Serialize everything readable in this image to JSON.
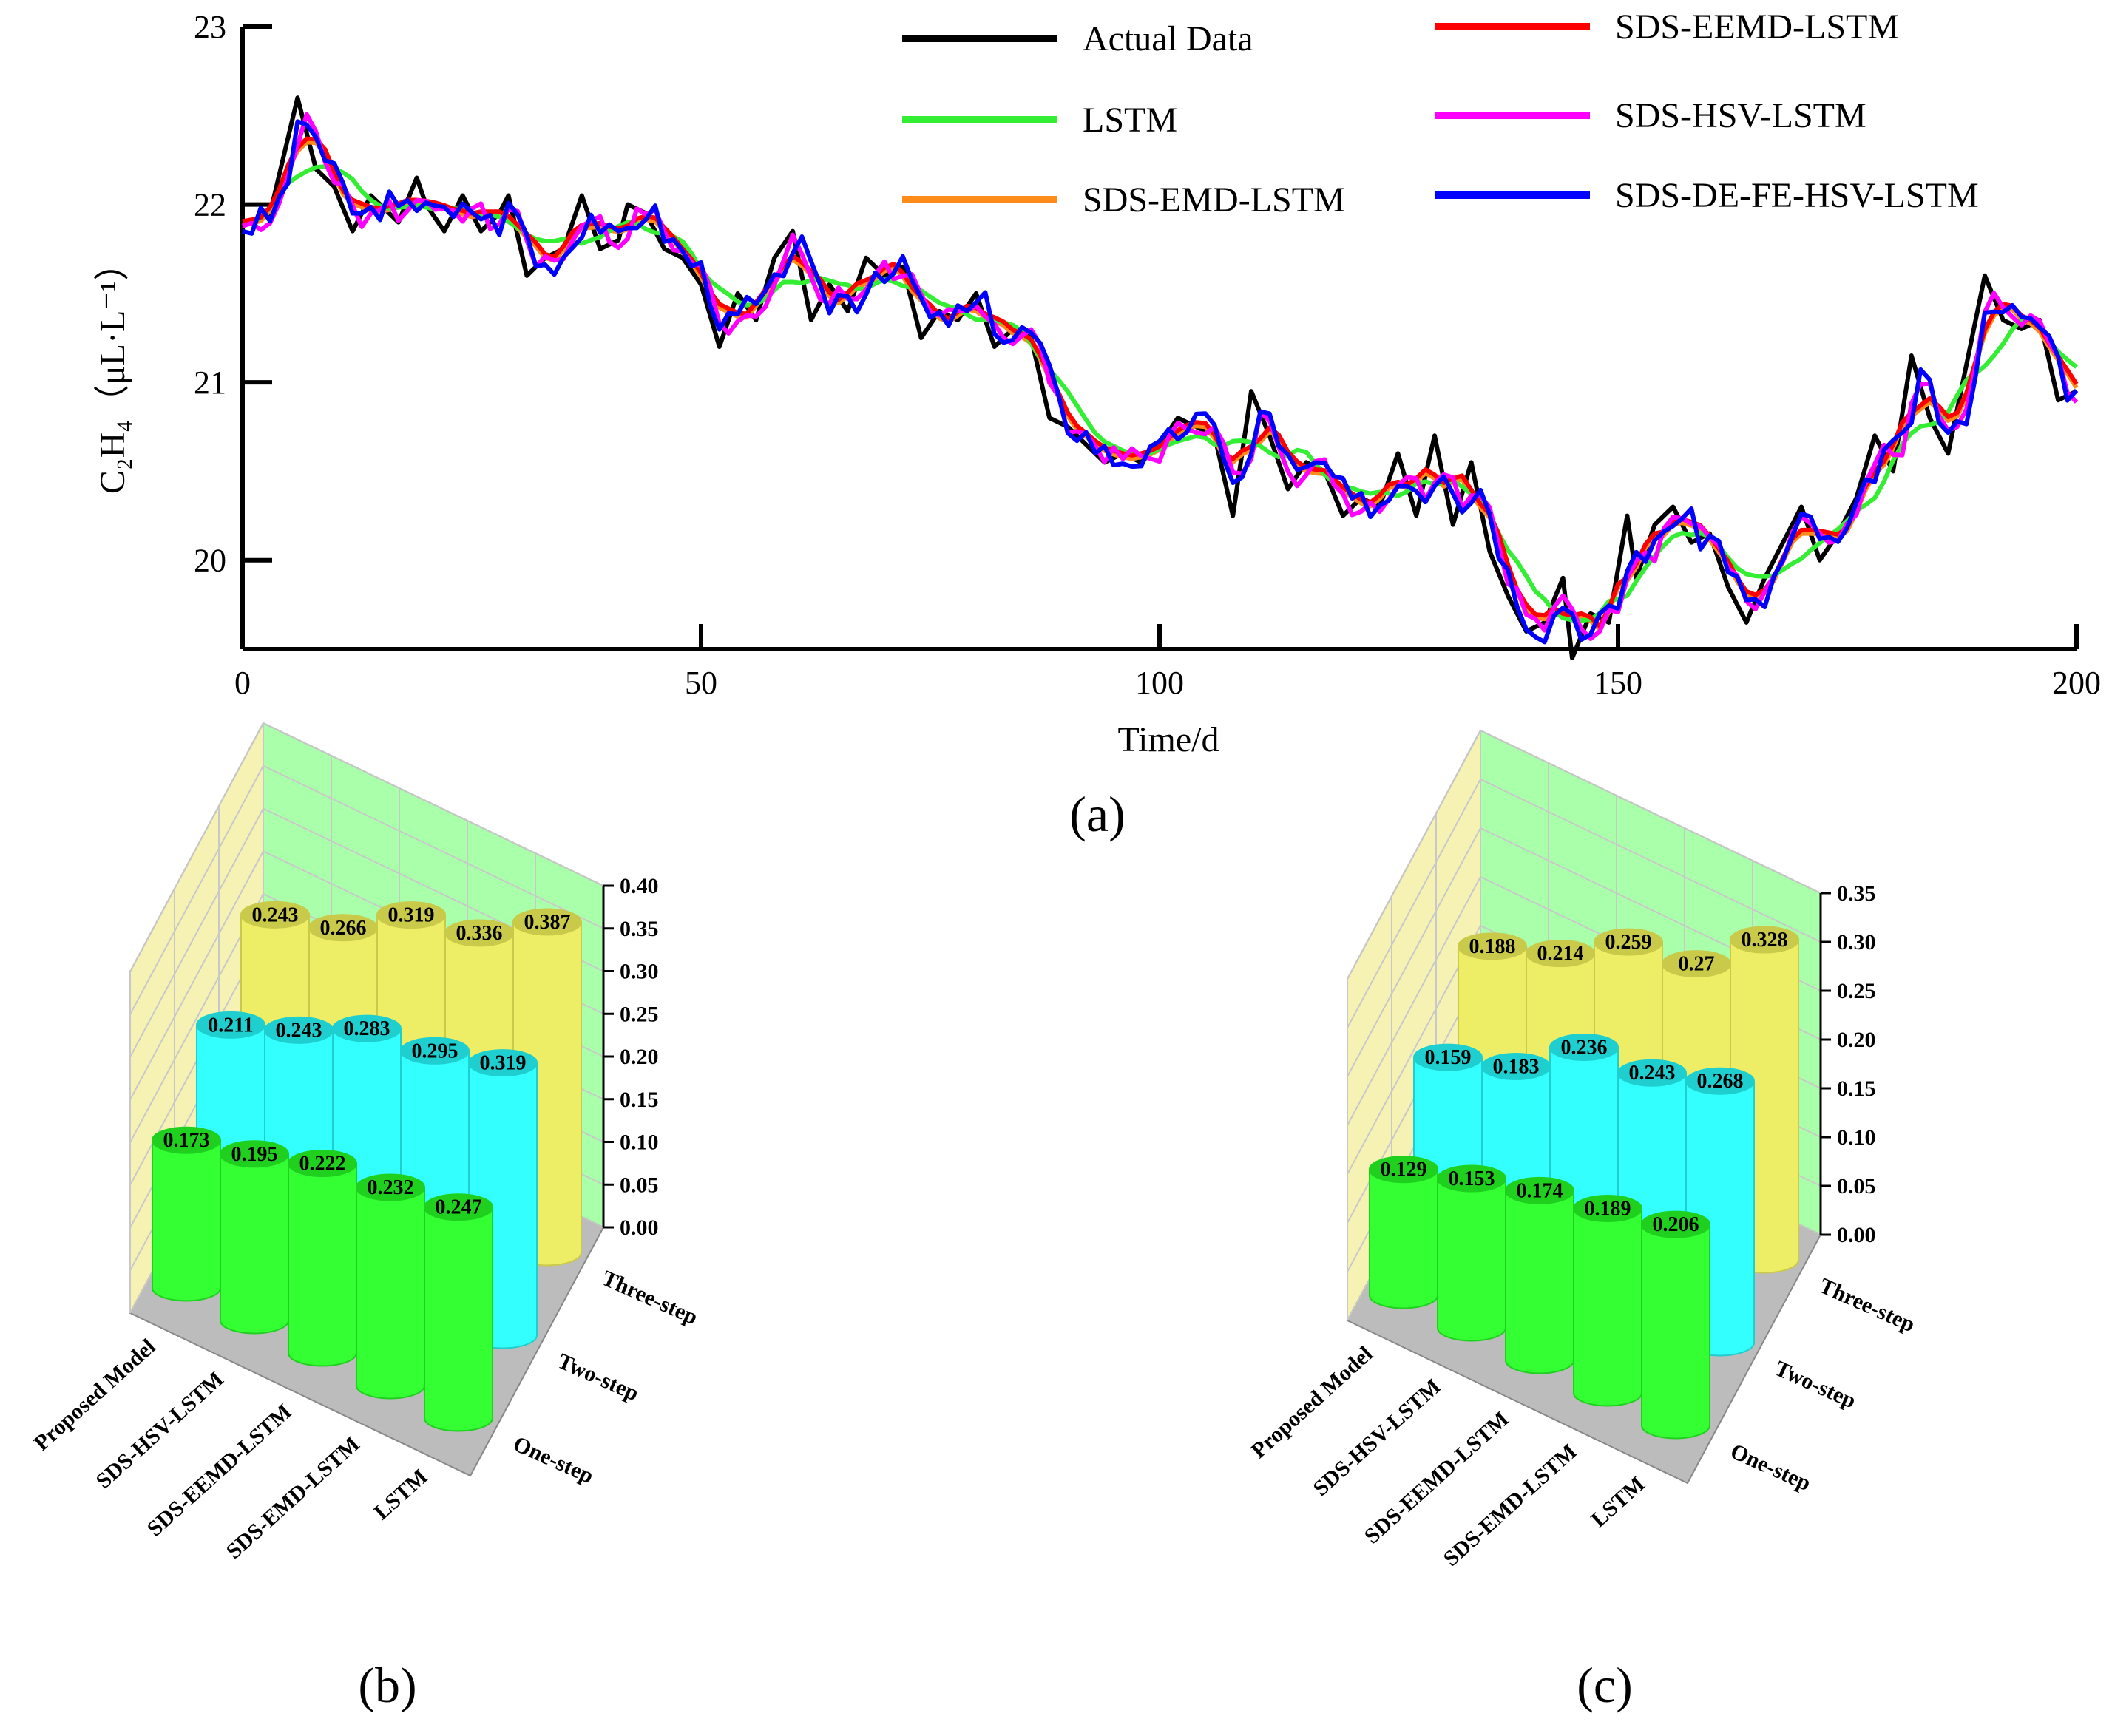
{
  "chart_data": [
    {
      "panel": "(a)",
      "type": "line",
      "xlabel": "Time/d",
      "ylabel": "C₂H₄（μL·L⁻¹）",
      "xlim": [
        0,
        200
      ],
      "ylim": [
        19.5,
        23
      ],
      "xticks": [
        "0",
        "50",
        "100",
        "150",
        "200"
      ],
      "yticks": [
        "20",
        "21",
        "22",
        "23"
      ],
      "legend": [
        "Actual Data",
        "LSTM",
        "SDS-EMD-LSTM",
        "SDS-EEMD-LSTM",
        "SDS-HSV-LSTM",
        "SDS-DE-FE-HSV-LSTM"
      ],
      "colors": [
        "#000000",
        "#33ee33",
        "#ff8c1a",
        "#ff0000",
        "#ff00ff",
        "#0000ff"
      ],
      "actual_keypoints": [
        [
          0,
          21.88
        ],
        [
          3,
          21.95
        ],
        [
          6,
          22.6
        ],
        [
          8,
          22.2
        ],
        [
          10,
          22.1
        ],
        [
          12,
          21.85
        ],
        [
          14,
          22.05
        ],
        [
          17,
          21.9
        ],
        [
          19,
          22.15
        ],
        [
          20,
          22.0
        ],
        [
          22,
          21.85
        ],
        [
          24,
          22.05
        ],
        [
          26,
          21.85
        ],
        [
          28,
          21.95
        ],
        [
          29,
          22.05
        ],
        [
          31,
          21.6
        ],
        [
          33,
          21.7
        ],
        [
          35,
          21.75
        ],
        [
          37,
          22.05
        ],
        [
          39,
          21.75
        ],
        [
          41,
          21.8
        ],
        [
          42,
          22.0
        ],
        [
          44,
          21.95
        ],
        [
          46,
          21.75
        ],
        [
          48,
          21.7
        ],
        [
          50,
          21.55
        ],
        [
          52,
          21.2
        ],
        [
          54,
          21.5
        ],
        [
          56,
          21.35
        ],
        [
          58,
          21.7
        ],
        [
          60,
          21.85
        ],
        [
          62,
          21.35
        ],
        [
          64,
          21.55
        ],
        [
          66,
          21.4
        ],
        [
          68,
          21.7
        ],
        [
          70,
          21.6
        ],
        [
          72,
          21.65
        ],
        [
          74,
          21.25
        ],
        [
          76,
          21.4
        ],
        [
          78,
          21.35
        ],
        [
          80,
          21.5
        ],
        [
          82,
          21.2
        ],
        [
          84,
          21.3
        ],
        [
          86,
          21.25
        ],
        [
          88,
          20.8
        ],
        [
          90,
          20.75
        ],
        [
          92,
          20.65
        ],
        [
          94,
          20.55
        ],
        [
          96,
          20.6
        ],
        [
          98,
          20.55
        ],
        [
          100,
          20.65
        ],
        [
          102,
          20.8
        ],
        [
          104,
          20.75
        ],
        [
          106,
          20.7
        ],
        [
          108,
          20.25
        ],
        [
          110,
          20.95
        ],
        [
          112,
          20.7
        ],
        [
          114,
          20.4
        ],
        [
          116,
          20.55
        ],
        [
          118,
          20.5
        ],
        [
          120,
          20.25
        ],
        [
          122,
          20.35
        ],
        [
          124,
          20.3
        ],
        [
          126,
          20.6
        ],
        [
          128,
          20.25
        ],
        [
          130,
          20.7
        ],
        [
          132,
          20.2
        ],
        [
          134,
          20.55
        ],
        [
          136,
          20.05
        ],
        [
          138,
          19.8
        ],
        [
          140,
          19.6
        ],
        [
          142,
          19.65
        ],
        [
          144,
          19.9
        ],
        [
          145,
          19.45
        ],
        [
          147,
          19.7
        ],
        [
          149,
          19.65
        ],
        [
          151,
          20.25
        ],
        [
          152,
          19.9
        ],
        [
          154,
          20.2
        ],
        [
          156,
          20.3
        ],
        [
          158,
          20.1
        ],
        [
          160,
          20.15
        ],
        [
          162,
          19.85
        ],
        [
          164,
          19.65
        ],
        [
          166,
          19.9
        ],
        [
          168,
          20.1
        ],
        [
          170,
          20.3
        ],
        [
          172,
          20.0
        ],
        [
          174,
          20.15
        ],
        [
          176,
          20.35
        ],
        [
          178,
          20.7
        ],
        [
          180,
          20.5
        ],
        [
          182,
          21.15
        ],
        [
          184,
          20.8
        ],
        [
          186,
          20.6
        ],
        [
          188,
          21.1
        ],
        [
          190,
          21.6
        ],
        [
          192,
          21.35
        ],
        [
          194,
          21.3
        ],
        [
          196,
          21.35
        ],
        [
          198,
          20.9
        ],
        [
          200,
          20.95
        ]
      ]
    },
    {
      "panel": "(b)",
      "type": "bar3d",
      "zlim": [
        0,
        0.4
      ],
      "zticks": [
        "0.00",
        "0.05",
        "0.10",
        "0.15",
        "0.20",
        "0.25",
        "0.30",
        "0.35",
        "0.40"
      ],
      "categories": [
        "Proposed Model",
        "SDS-HSV-LSTM",
        "SDS-EEMD-LSTM",
        "SDS-EMD-LSTM",
        "LSTM"
      ],
      "steps": [
        "One-step",
        "Two-step",
        "Three-step"
      ],
      "series": [
        {
          "name": "One-step",
          "color": "#33ff33",
          "values": [
            0.173,
            0.195,
            0.222,
            0.232,
            0.247
          ],
          "labels": [
            "0.173",
            "0.195",
            "0.222",
            "0.232",
            "0.247"
          ]
        },
        {
          "name": "Two-step",
          "color": "#33ffff",
          "values": [
            0.211,
            0.243,
            0.283,
            0.295,
            0.319
          ],
          "labels": [
            "0.211",
            "0.243",
            "0.283",
            "0.295",
            "0.319"
          ]
        },
        {
          "name": "Three-step",
          "color": "#eeee66",
          "values": [
            0.243,
            0.266,
            0.319,
            0.336,
            0.387
          ],
          "labels": [
            "0.243",
            "0.266",
            "0.319",
            "0.336",
            "0.387"
          ]
        }
      ]
    },
    {
      "panel": "(c)",
      "type": "bar3d",
      "zlim": [
        0,
        0.35
      ],
      "zticks": [
        "0.00",
        "0.05",
        "0.10",
        "0.15",
        "0.20",
        "0.25",
        "0.30",
        "0.35"
      ],
      "categories": [
        "Proposed Model",
        "SDS-HSV-LSTM",
        "SDS-EEMD-LSTM",
        "SDS-EMD-LSTM",
        "LSTM"
      ],
      "steps": [
        "One-step",
        "Two-step",
        "Three-step"
      ],
      "series": [
        {
          "name": "One-step",
          "color": "#33ff33",
          "values": [
            0.129,
            0.153,
            0.174,
            0.189,
            0.206
          ],
          "labels": [
            "0.129",
            "0.153",
            "0.174",
            "0.189",
            "0.206"
          ]
        },
        {
          "name": "Two-step",
          "color": "#33ffff",
          "values": [
            0.159,
            0.183,
            0.236,
            0.243,
            0.268
          ],
          "labels": [
            "0.159",
            "0.183",
            "0.236",
            "0.243",
            "0.268"
          ]
        },
        {
          "name": "Three-step",
          "color": "#eeee66",
          "values": [
            0.188,
            0.214,
            0.259,
            0.27,
            0.328
          ],
          "labels": [
            "0.188",
            "0.214",
            "0.259",
            "0.27",
            "0.328"
          ]
        }
      ]
    }
  ]
}
